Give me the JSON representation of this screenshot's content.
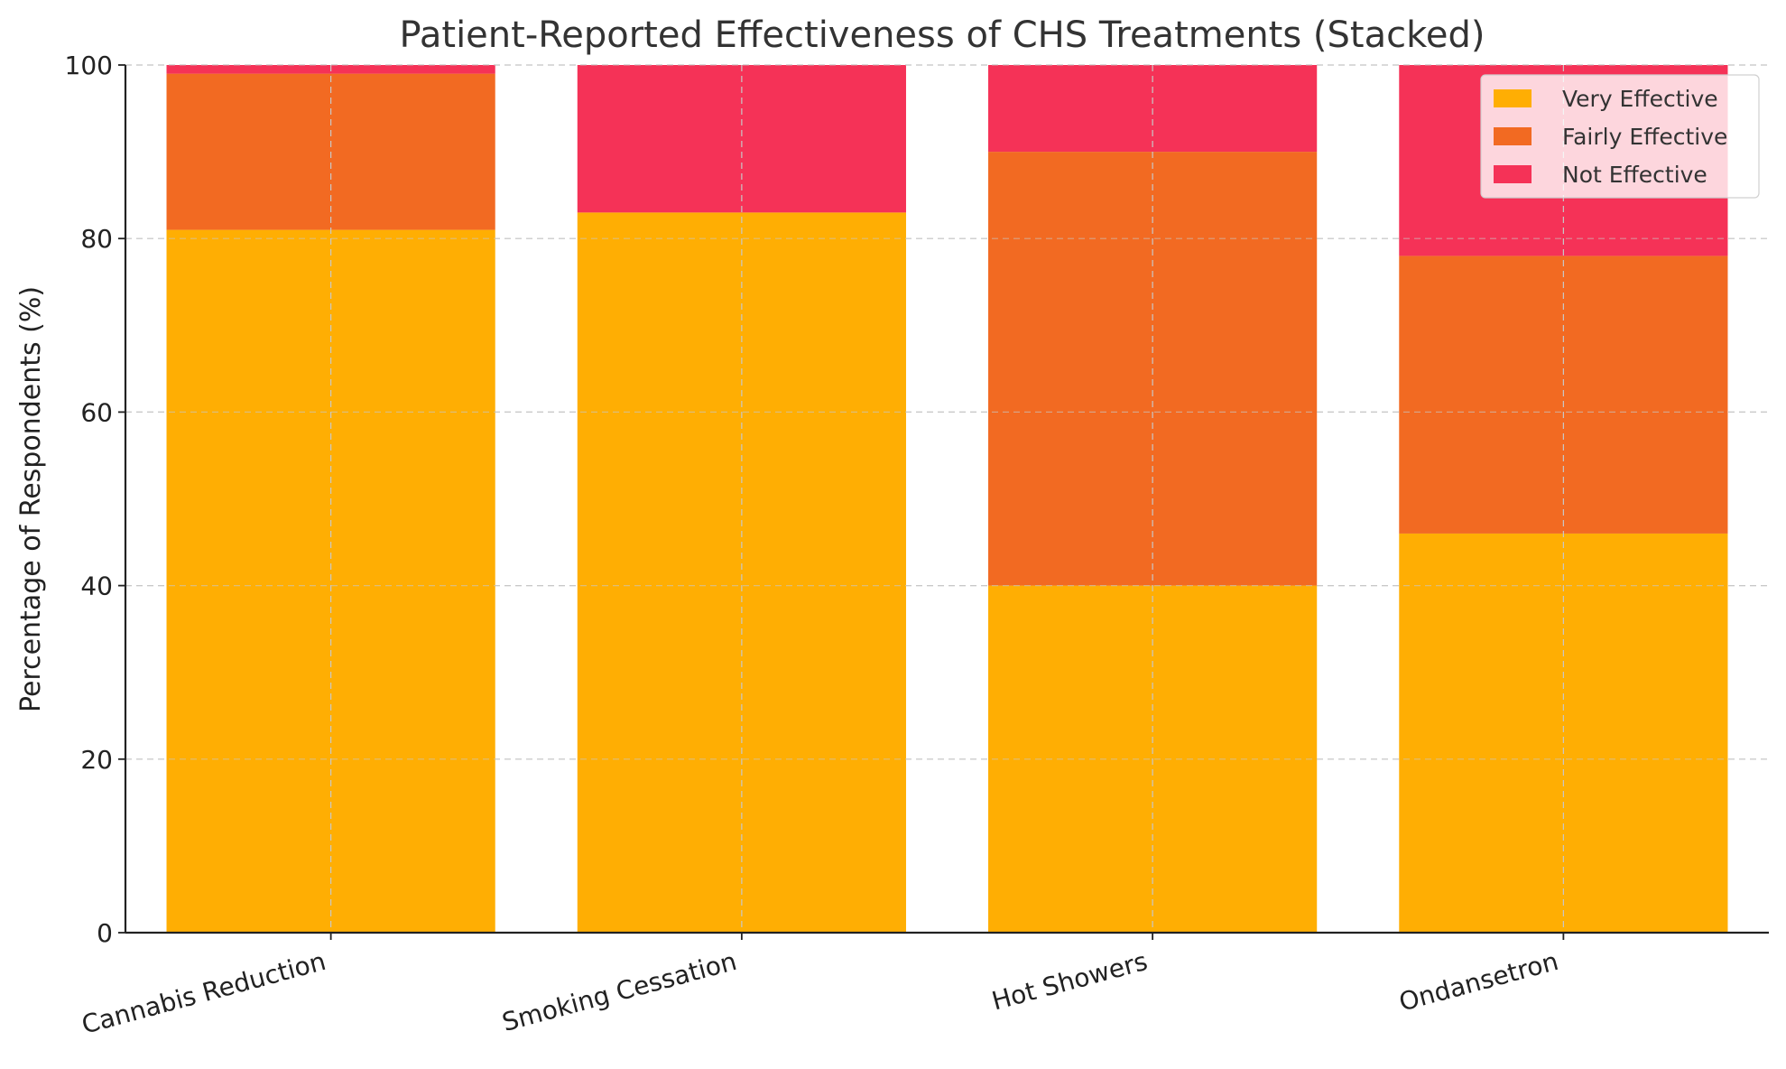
{
  "chart_data": {
    "type": "bar",
    "stacked": true,
    "title": "Patient-Reported Effectiveness of CHS Treatments (Stacked)",
    "xlabel": "",
    "ylabel": "Percentage of Respondents (%)",
    "ylim": [
      0,
      100
    ],
    "yticks": [
      0,
      20,
      40,
      60,
      80,
      100
    ],
    "categories": [
      "Cannabis Reduction",
      "Smoking Cessation",
      "Hot Showers",
      "Ondansetron"
    ],
    "series": [
      {
        "name": "Very Effective",
        "color": "#FFAE03",
        "values": [
          81,
          83,
          40,
          46
        ]
      },
      {
        "name": "Fairly Effective",
        "color": "#F26A22",
        "values": [
          18,
          0,
          50,
          32
        ]
      },
      {
        "name": "Not Effective",
        "color": "#F53257",
        "values": [
          1,
          17,
          10,
          22
        ]
      }
    ],
    "grid": true,
    "legend_position": "top-right"
  }
}
